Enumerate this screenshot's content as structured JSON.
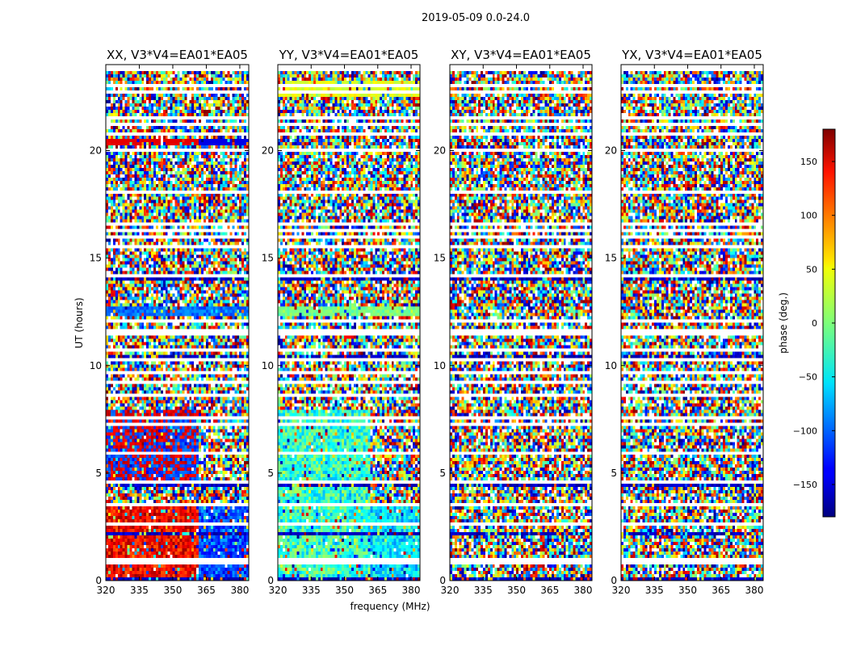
{
  "figure_title": "2019-05-09 0.0-24.0",
  "chart_data": [
    {
      "type": "heatmap",
      "title": "XX, V3*V4=EA01*EA05",
      "xlabel": "",
      "ylabel": "UT (hours)",
      "x_ticks": [
        320,
        335,
        350,
        365,
        380
      ],
      "y_ticks": [
        0,
        5,
        10,
        15,
        20
      ],
      "xlim": [
        320,
        384
      ],
      "ylim": [
        0,
        24
      ],
      "pattern": "xx"
    },
    {
      "type": "heatmap",
      "title": "YY, V3*V4=EA01*EA05",
      "xlabel": "frequency (MHz)",
      "ylabel": "",
      "x_ticks": [
        320,
        335,
        350,
        365,
        380
      ],
      "y_ticks": [
        0,
        5,
        10,
        15,
        20
      ],
      "xlim": [
        320,
        384
      ],
      "ylim": [
        0,
        24
      ],
      "pattern": "yy"
    },
    {
      "type": "heatmap",
      "title": "XY, V3*V4=EA01*EA05",
      "xlabel": "",
      "ylabel": "",
      "x_ticks": [
        320,
        335,
        350,
        365,
        380
      ],
      "y_ticks": [
        0,
        5,
        10,
        15,
        20
      ],
      "xlim": [
        320,
        384
      ],
      "ylim": [
        0,
        24
      ],
      "pattern": "noise"
    },
    {
      "type": "heatmap",
      "title": "YX, V3*V4=EA01*EA05",
      "xlabel": "",
      "ylabel": "",
      "x_ticks": [
        320,
        335,
        350,
        365,
        380
      ],
      "y_ticks": [
        0,
        5,
        10,
        15,
        20
      ],
      "xlim": [
        320,
        384
      ],
      "ylim": [
        0,
        24
      ],
      "pattern": "noise"
    }
  ],
  "colorbar": {
    "label": "phase (deg.)",
    "range": [
      -180,
      180
    ],
    "ticks": [
      150,
      100,
      50,
      0,
      -50,
      -100,
      -150
    ],
    "tick_labels": [
      "150",
      "100",
      "50",
      "0",
      "−50",
      "−100",
      "−150"
    ],
    "colormap": "jet"
  }
}
